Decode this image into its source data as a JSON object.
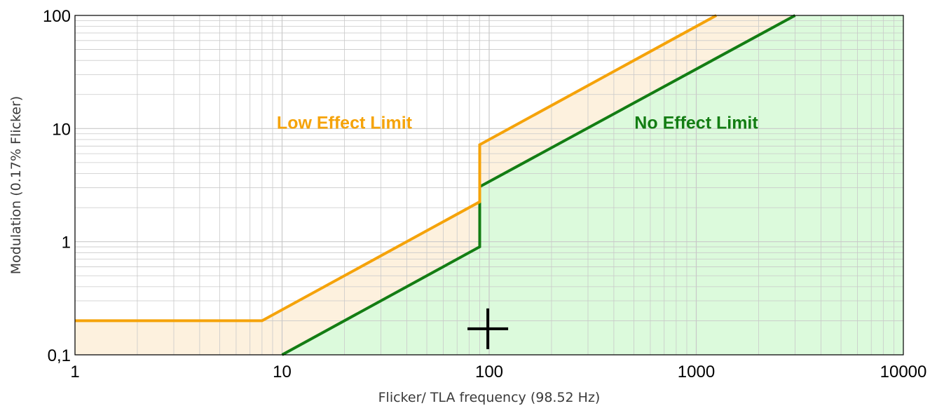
{
  "chart_data": {
    "type": "line",
    "title": "",
    "xlabel": "Flicker/ TLA frequency (98.52 Hz)",
    "ylabel": "Modulation (0.17% Flicker)",
    "xscale": "log",
    "yscale": "log",
    "xlim": [
      1,
      10000
    ],
    "ylim": [
      0.1,
      100
    ],
    "grid": true,
    "x_ticks": [
      {
        "value": 1,
        "label": "1"
      },
      {
        "value": 10,
        "label": "10"
      },
      {
        "value": 100,
        "label": "100"
      },
      {
        "value": 1000,
        "label": "1000"
      },
      {
        "value": 10000,
        "label": "10000"
      }
    ],
    "y_ticks": [
      {
        "value": 0.1,
        "label": "0,1"
      },
      {
        "value": 1,
        "label": "1"
      },
      {
        "value": 10,
        "label": "10"
      },
      {
        "value": 100,
        "label": "100"
      }
    ],
    "series": [
      {
        "name": "Low Effect Limit",
        "color": "#f5a30a",
        "fill": "#fdf1de",
        "points": [
          [
            1,
            0.2
          ],
          [
            8,
            0.2
          ],
          [
            90,
            2.25
          ],
          [
            90,
            7.2
          ],
          [
            1250,
            100
          ]
        ]
      },
      {
        "name": "No Effect Limit",
        "color": "#137d13",
        "fill": "#dcfadc",
        "points": [
          [
            10,
            0.1
          ],
          [
            90,
            0.9
          ],
          [
            90,
            3.06
          ],
          [
            3000,
            100
          ]
        ]
      }
    ],
    "annotations": [
      {
        "text": "Low Effect Limit",
        "x": 20,
        "y": 10,
        "color": "#f5a30a"
      },
      {
        "text": "No Effect Limit",
        "x": 1000,
        "y": 10,
        "color": "#137d13"
      }
    ],
    "markers": [
      {
        "shape": "plus",
        "x": 98.52,
        "y": 0.17,
        "color": "#000000"
      }
    ]
  }
}
